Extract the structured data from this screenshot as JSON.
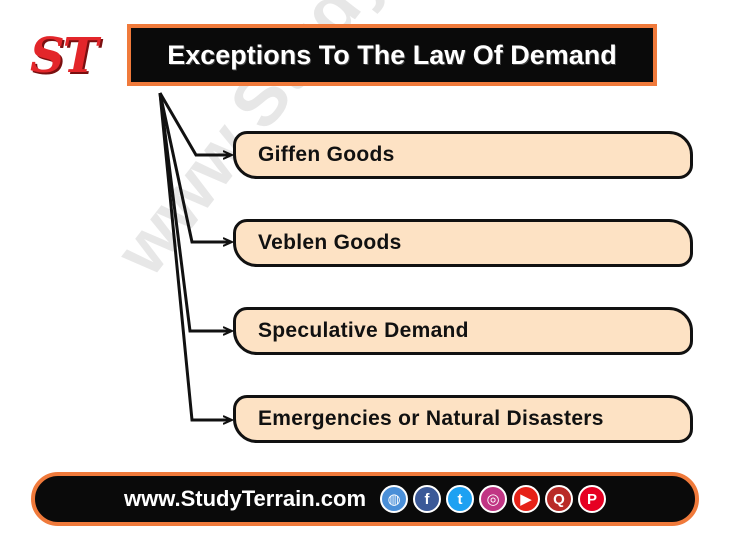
{
  "logo": {
    "text": "ST"
  },
  "title": "Exceptions To The Law Of Demand",
  "watermark": "www.StudyTerrain.com",
  "items": [
    {
      "label": "Giffen Goods"
    },
    {
      "label": "Veblen Goods"
    },
    {
      "label": "Speculative Demand"
    },
    {
      "label": "Emergencies or Natural Disasters"
    }
  ],
  "footer": {
    "url": "www.StudyTerrain.com"
  },
  "social_icons": [
    {
      "name": "globe-icon",
      "glyph": "◍",
      "color": "#4a8fd8"
    },
    {
      "name": "facebook-icon",
      "glyph": "f",
      "color": "#3b5998"
    },
    {
      "name": "twitter-icon",
      "glyph": "t",
      "color": "#1da1f2"
    },
    {
      "name": "instagram-icon",
      "glyph": "◎",
      "color": "#c13584"
    },
    {
      "name": "youtube-icon",
      "glyph": "▶",
      "color": "#e62117"
    },
    {
      "name": "quora-icon",
      "glyph": "Q",
      "color": "#b92b27"
    },
    {
      "name": "pinterest-icon",
      "glyph": "P",
      "color": "#e60023"
    }
  ],
  "colors": {
    "accent_orange": "#f07a3b",
    "box_fill": "#fde2c4",
    "logo_red": "#e3262a"
  }
}
